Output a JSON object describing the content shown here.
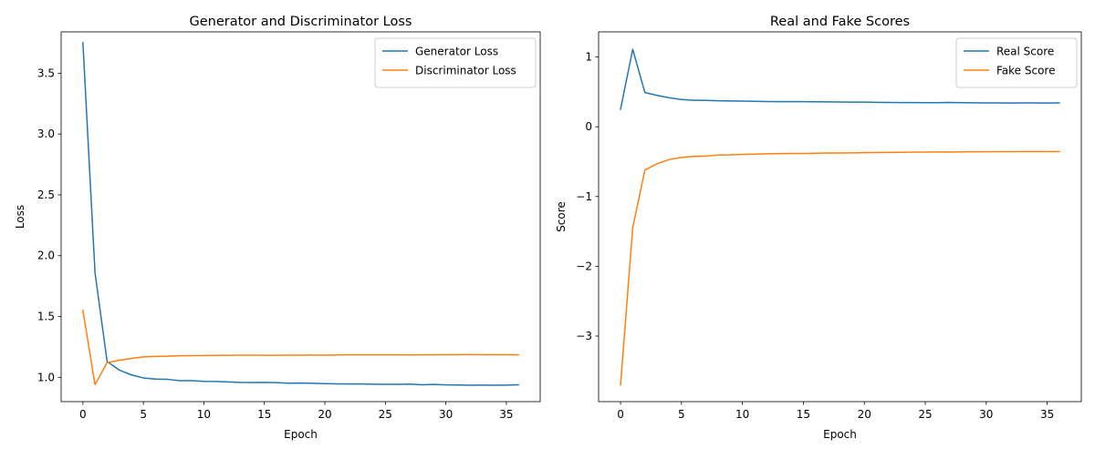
{
  "chart_data": [
    {
      "type": "line",
      "title": "Generator and Discriminator Loss",
      "xlabel": "Epoch",
      "ylabel": "Loss",
      "xlim": [
        -1.8,
        37.8
      ],
      "ylim": [
        0.8,
        3.84
      ],
      "xticks": [
        0,
        5,
        10,
        15,
        20,
        25,
        30,
        35
      ],
      "yticks": [
        1.0,
        1.5,
        2.0,
        2.5,
        3.0,
        3.5
      ],
      "ytick_labels": [
        "1.0",
        "1.5",
        "2.0",
        "2.5",
        "3.0",
        "3.5"
      ],
      "legend_position": "top-right",
      "x": [
        0,
        1,
        2,
        3,
        4,
        5,
        6,
        7,
        8,
        9,
        10,
        11,
        12,
        13,
        14,
        15,
        16,
        17,
        18,
        19,
        20,
        21,
        22,
        23,
        24,
        25,
        26,
        27,
        28,
        29,
        30,
        31,
        32,
        33,
        34,
        35,
        36
      ],
      "series": [
        {
          "name": "Generator Loss",
          "color": "#1f77b4",
          "values": [
            3.75,
            1.86,
            1.13,
            1.06,
            1.02,
            0.995,
            0.985,
            0.983,
            0.972,
            0.972,
            0.967,
            0.966,
            0.962,
            0.958,
            0.957,
            0.958,
            0.956,
            0.952,
            0.953,
            0.951,
            0.948,
            0.946,
            0.945,
            0.945,
            0.943,
            0.942,
            0.942,
            0.944,
            0.939,
            0.941,
            0.938,
            0.937,
            0.935,
            0.936,
            0.935,
            0.936,
            0.938
          ]
        },
        {
          "name": "Discriminator Loss",
          "color": "#ff7f0e",
          "values": [
            1.55,
            0.94,
            1.12,
            1.14,
            1.155,
            1.168,
            1.172,
            1.173,
            1.177,
            1.178,
            1.179,
            1.18,
            1.181,
            1.182,
            1.182,
            1.181,
            1.181,
            1.182,
            1.182,
            1.183,
            1.182,
            1.184,
            1.185,
            1.185,
            1.185,
            1.185,
            1.185,
            1.184,
            1.185,
            1.185,
            1.186,
            1.186,
            1.187,
            1.186,
            1.186,
            1.186,
            1.185
          ]
        }
      ]
    },
    {
      "type": "line",
      "title": "Real and Fake Scores",
      "xlabel": "Epoch",
      "ylabel": "Score",
      "xlim": [
        -1.8,
        37.8
      ],
      "ylim": [
        -3.94,
        1.36
      ],
      "xticks": [
        0,
        5,
        10,
        15,
        20,
        25,
        30,
        35
      ],
      "yticks": [
        -3,
        -2,
        -1,
        0,
        1
      ],
      "ytick_labels": [
        "−3",
        "−2",
        "−1",
        "0",
        "1"
      ],
      "legend_position": "top-right",
      "x": [
        0,
        1,
        2,
        3,
        4,
        5,
        6,
        7,
        8,
        9,
        10,
        11,
        12,
        13,
        14,
        15,
        16,
        17,
        18,
        19,
        20,
        21,
        22,
        23,
        24,
        25,
        26,
        27,
        28,
        29,
        30,
        31,
        32,
        33,
        34,
        35,
        36
      ],
      "series": [
        {
          "name": "Real Score",
          "color": "#1f77b4",
          "values": [
            0.25,
            1.11,
            0.49,
            0.45,
            0.415,
            0.39,
            0.38,
            0.378,
            0.372,
            0.37,
            0.368,
            0.365,
            0.362,
            0.36,
            0.36,
            0.36,
            0.358,
            0.356,
            0.355,
            0.353,
            0.353,
            0.35,
            0.348,
            0.347,
            0.347,
            0.345,
            0.345,
            0.348,
            0.345,
            0.343,
            0.342,
            0.342,
            0.34,
            0.342,
            0.342,
            0.34,
            0.342
          ]
        },
        {
          "name": "Fake Score",
          "color": "#ff7f0e",
          "values": [
            -3.7,
            -1.45,
            -0.62,
            -0.53,
            -0.47,
            -0.44,
            -0.425,
            -0.42,
            -0.405,
            -0.402,
            -0.395,
            -0.392,
            -0.388,
            -0.385,
            -0.383,
            -0.383,
            -0.38,
            -0.377,
            -0.376,
            -0.374,
            -0.372,
            -0.37,
            -0.368,
            -0.366,
            -0.364,
            -0.363,
            -0.362,
            -0.363,
            -0.36,
            -0.359,
            -0.358,
            -0.357,
            -0.356,
            -0.355,
            -0.355,
            -0.355,
            -0.357
          ]
        }
      ]
    }
  ]
}
